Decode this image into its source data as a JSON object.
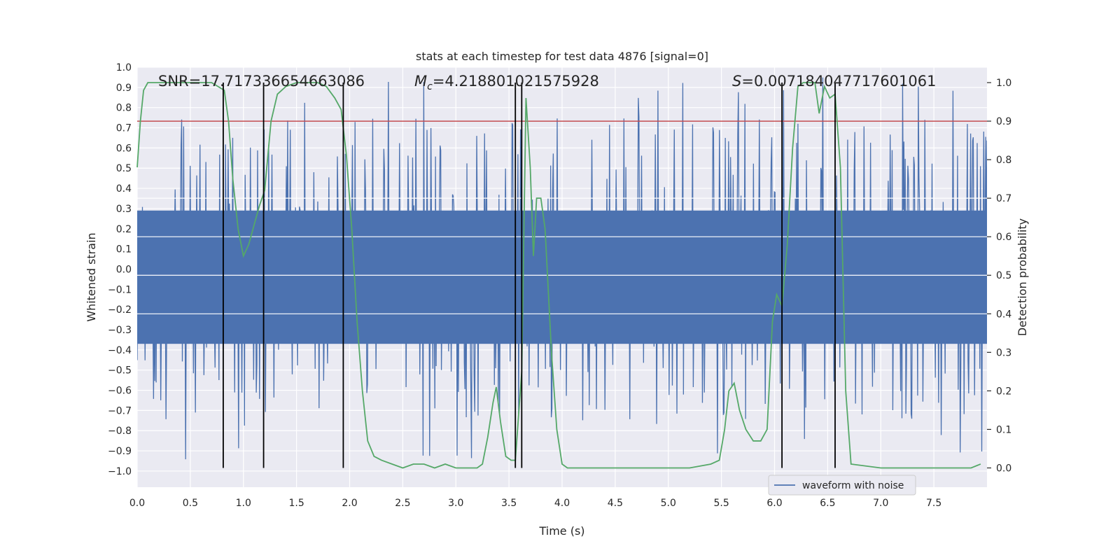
{
  "chart_data": {
    "type": "line",
    "title": "stats at each timestep for test data 4876 [signal=0]",
    "xlabel": "Time (s)",
    "ylabel_left": "Whitened strain",
    "ylabel_right": "Detection probability",
    "xlim": [
      0.0,
      8.0
    ],
    "ylim_left": [
      -1.08,
      1.0
    ],
    "ylim_right": [
      -0.05,
      1.04
    ],
    "x_ticks": [
      "0.0",
      "0.5",
      "1.0",
      "1.5",
      "2.0",
      "2.5",
      "3.0",
      "3.5",
      "4.0",
      "4.5",
      "5.0",
      "5.5",
      "6.0",
      "6.5",
      "7.0",
      "7.5"
    ],
    "x_tick_values": [
      0,
      0.5,
      1,
      1.5,
      2,
      2.5,
      3,
      3.5,
      4,
      4.5,
      5,
      5.5,
      6,
      6.5,
      7,
      7.5
    ],
    "y_left_ticks": [
      "1.0",
      "0.9",
      "0.8",
      "0.7",
      "0.6",
      "0.5",
      "0.4",
      "0.3",
      "0.2",
      "0.1",
      "0.0",
      "−0.1",
      "−0.2",
      "−0.3",
      "−0.4",
      "−0.5",
      "−0.6",
      "−0.7",
      "−0.8",
      "−0.9",
      "−1.0"
    ],
    "y_left_tick_values": [
      1.0,
      0.9,
      0.8,
      0.7,
      0.6,
      0.5,
      0.4,
      0.3,
      0.2,
      0.1,
      0.0,
      -0.1,
      -0.2,
      -0.3,
      -0.4,
      -0.5,
      -0.6,
      -0.7,
      -0.8,
      -0.9,
      -1.0
    ],
    "y_right_ticks": [
      "1.0",
      "0.9",
      "0.8",
      "0.7",
      "0.6",
      "0.5",
      "0.4",
      "0.3",
      "0.2",
      "0.1",
      "0.0"
    ],
    "y_right_tick_values": [
      1.0,
      0.9,
      0.8,
      0.7,
      0.6,
      0.5,
      0.4,
      0.3,
      0.2,
      0.1,
      0.0
    ],
    "annotations": {
      "snr": "SNR=17.717336654663086",
      "mc_symbol": "M",
      "mc_sub": "c",
      "mc_value": "=4.218801021575928",
      "s_symbol": "S",
      "s_value": "=0.007184047717601061"
    },
    "legend": {
      "label": "waveform with noise",
      "placement": "lower-right"
    },
    "threshold": {
      "value": 0.9,
      "axis": "right",
      "color": "#c44e52"
    },
    "vertical_lines": [
      0.81,
      1.19,
      1.94,
      3.56,
      3.62,
      6.07,
      6.57
    ],
    "colors": {
      "waveform": "#4c72b0",
      "probability": "#55a868",
      "threshold": "#c44e52",
      "markers": "#000000",
      "plot_bg": "#eaeaf2",
      "grid": "#ffffff"
    },
    "waveform": {
      "description_free_stats": true,
      "duration": 8.0,
      "samples": 1300,
      "seed": 4876,
      "core_amplitude": 0.42,
      "max_amplitude": 0.95,
      "min_amplitude": -1.0
    },
    "series": [
      {
        "name": "detection probability",
        "axis": "right",
        "x": [
          0.0,
          0.03,
          0.06,
          0.1,
          0.15,
          0.3,
          0.5,
          0.7,
          0.76,
          0.82,
          0.86,
          0.9,
          0.95,
          1.0,
          1.05,
          1.1,
          1.15,
          1.2,
          1.26,
          1.32,
          1.4,
          1.5,
          1.6,
          1.7,
          1.78,
          1.86,
          1.92,
          1.97,
          2.02,
          2.07,
          2.12,
          2.17,
          2.23,
          2.3,
          2.4,
          2.5,
          2.6,
          2.7,
          2.8,
          2.9,
          3.0,
          3.1,
          3.2,
          3.25,
          3.3,
          3.35,
          3.38,
          3.42,
          3.47,
          3.52,
          3.56,
          3.62,
          3.66,
          3.7,
          3.73,
          3.76,
          3.8,
          3.84,
          3.9,
          3.95,
          4.0,
          4.05,
          4.1,
          4.5,
          5.0,
          5.2,
          5.4,
          5.48,
          5.53,
          5.57,
          5.62,
          5.67,
          5.73,
          5.8,
          5.87,
          5.93,
          5.98,
          6.02,
          6.07,
          6.12,
          6.17,
          6.22,
          6.27,
          6.32,
          6.38,
          6.42,
          6.47,
          6.52,
          6.57,
          6.62,
          6.67,
          6.72,
          7.0,
          7.5,
          7.85,
          7.94
        ],
        "y": [
          0.78,
          0.9,
          0.98,
          1.0,
          1.0,
          1.0,
          1.0,
          1.0,
          0.99,
          0.98,
          0.9,
          0.75,
          0.62,
          0.55,
          0.58,
          0.63,
          0.68,
          0.72,
          0.9,
          0.97,
          0.99,
          1.0,
          1.0,
          1.0,
          0.99,
          0.96,
          0.93,
          0.81,
          0.62,
          0.38,
          0.2,
          0.07,
          0.03,
          0.02,
          0.01,
          0.0,
          0.01,
          0.01,
          0.0,
          0.01,
          0.0,
          0.0,
          0.0,
          0.01,
          0.08,
          0.17,
          0.21,
          0.12,
          0.03,
          0.02,
          0.02,
          0.25,
          0.96,
          0.78,
          0.55,
          0.7,
          0.7,
          0.62,
          0.3,
          0.1,
          0.01,
          0.0,
          0.0,
          0.0,
          0.0,
          0.0,
          0.01,
          0.02,
          0.1,
          0.2,
          0.22,
          0.15,
          0.1,
          0.07,
          0.07,
          0.1,
          0.38,
          0.45,
          0.42,
          0.58,
          0.83,
          0.99,
          1.0,
          1.0,
          1.0,
          0.92,
          0.99,
          0.96,
          0.97,
          0.78,
          0.2,
          0.01,
          0.0,
          0.0,
          0.0,
          0.01
        ]
      }
    ]
  }
}
